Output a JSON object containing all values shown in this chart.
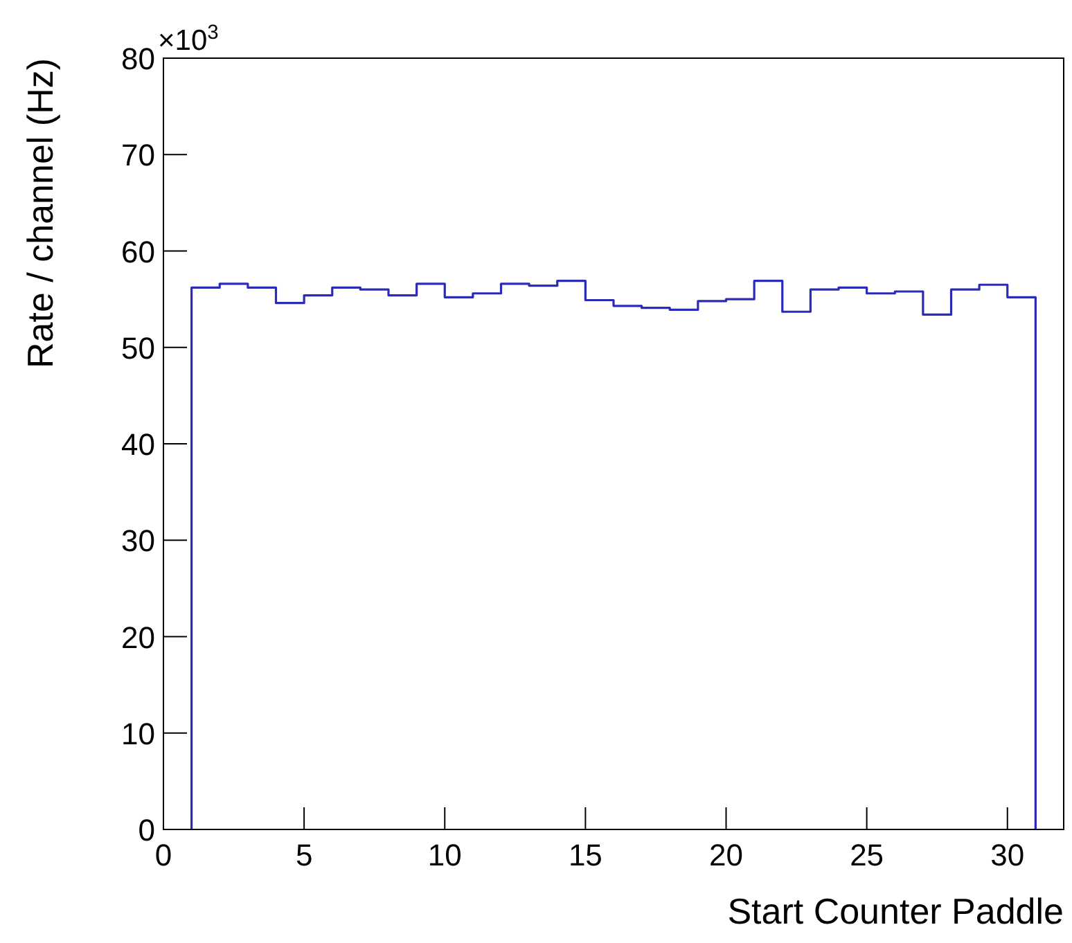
{
  "chart_data": {
    "type": "histogram",
    "xlabel": "Start Counter Paddle",
    "ylabel": "Rate / channel (Hz)",
    "annotations": [
      "×10$^{3}$"
    ],
    "bins": [
      1,
      2,
      3,
      4,
      5,
      6,
      7,
      8,
      9,
      10,
      11,
      12,
      13,
      14,
      15,
      16,
      17,
      18,
      19,
      20,
      21,
      22,
      23,
      24,
      25,
      26,
      27,
      28,
      29,
      30,
      31
    ],
    "values": [
      56.2,
      56.6,
      56.2,
      54.6,
      55.4,
      56.2,
      56.0,
      55.4,
      56.6,
      55.2,
      55.6,
      56.6,
      56.4,
      56.9,
      54.9,
      54.3,
      54.1,
      53.9,
      54.8,
      55.0,
      56.9,
      53.7,
      56.0,
      56.2,
      55.6,
      55.8,
      53.4,
      56.0,
      56.5,
      55.2
    ],
    "color": "#2b2bb8",
    "xlim": [
      0,
      32
    ],
    "xticks": [
      0,
      5,
      10,
      15,
      20,
      25,
      30
    ],
    "ylim": [
      0,
      80
    ],
    "yticks": [
      0,
      10,
      20,
      30,
      40,
      50,
      60,
      70,
      80
    ]
  }
}
